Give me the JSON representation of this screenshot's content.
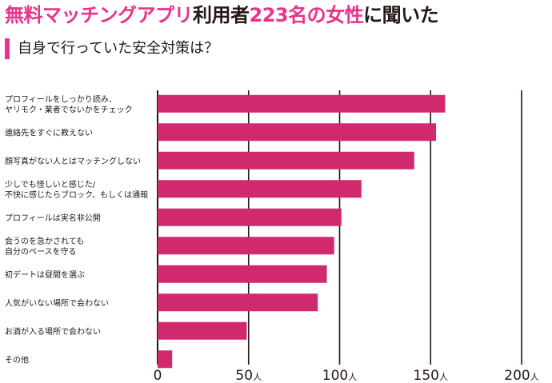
{
  "header": {
    "title_part1": "無料マッチングアプリ",
    "title_part2": "利用者",
    "title_part3": "223名の女性",
    "title_part4": "に聞いた",
    "subtitle": "自身で行っていた安全対策は？"
  },
  "colors": {
    "accent": "#e8338a",
    "bar": "#d0296e",
    "text": "#231815"
  },
  "chart_data": {
    "type": "bar",
    "orientation": "horizontal",
    "title": "自身で行っていた安全対策は？",
    "categories": [
      [
        "プロフィールをしっかり読み、",
        "ヤリモク・業者でないかをチェック"
      ],
      [
        "連絡先をすぐに教えない"
      ],
      [
        "顔写真がない人とはマッチングしない"
      ],
      [
        "少しでも怪しいと感じた/",
        "不快に感じたらブロック、もしくは通報"
      ],
      [
        "プロフィールは実名非公開"
      ],
      [
        "会うのを急かされても",
        "自分のペースを守る"
      ],
      [
        "初デートは昼間を選ぶ"
      ],
      [
        "人気がいない場所で会わない"
      ],
      [
        "お酒が入る場所で会わない"
      ],
      [
        "その他"
      ]
    ],
    "values": [
      158,
      153,
      141,
      112,
      101,
      97,
      93,
      88,
      49,
      8
    ],
    "xlim": [
      0,
      200
    ],
    "ticks": [
      {
        "num": "0",
        "unit": ""
      },
      {
        "num": "50",
        "unit": "人"
      },
      {
        "num": "100",
        "unit": "人"
      },
      {
        "num": "150",
        "unit": "人"
      },
      {
        "num": "200",
        "unit": "人"
      }
    ],
    "tick_values": [
      0,
      50,
      100,
      150,
      200
    ],
    "grid": true,
    "legend": "none"
  }
}
